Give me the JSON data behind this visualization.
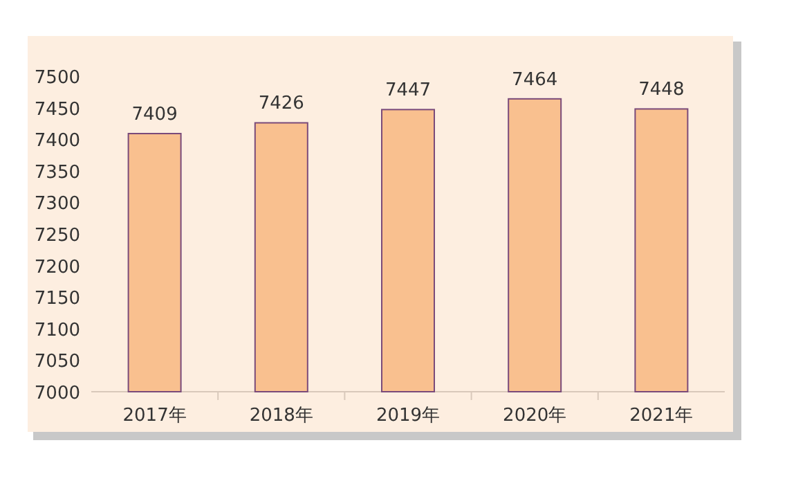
{
  "chart_data": {
    "type": "bar",
    "categories": [
      "2017年",
      "2018年",
      "2019年",
      "2020年",
      "2021年"
    ],
    "values": [
      7409,
      7426,
      7447,
      7464,
      7448
    ],
    "color": "#f9c08f",
    "ylim": [
      7000,
      7500
    ],
    "yticks": [
      7000,
      7050,
      7100,
      7150,
      7200,
      7250,
      7300,
      7350,
      7400,
      7450,
      7500
    ],
    "data_labels": true
  }
}
